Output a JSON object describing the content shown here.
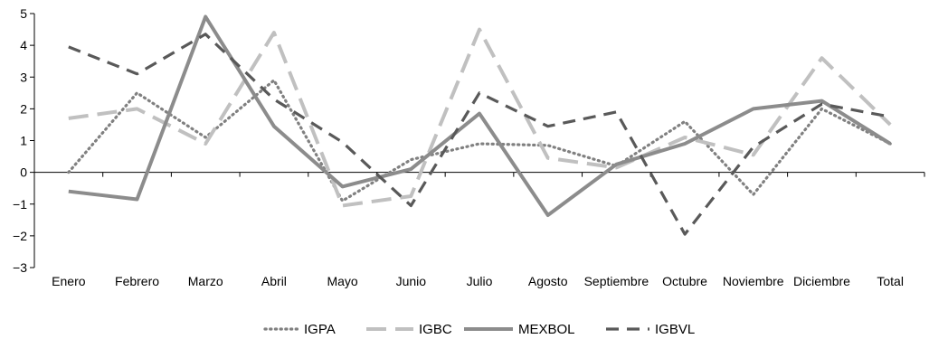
{
  "chart_data": {
    "type": "line",
    "categories": [
      "Enero",
      "Febrero",
      "Marzo",
      "Abril",
      "Mayo",
      "Junio",
      "Julio",
      "Agosto",
      "Septiembre",
      "Octubre",
      "Noviembre",
      "Diciembre",
      "Total"
    ],
    "ylim": [
      -3,
      5
    ],
    "yticks": [
      5,
      4,
      3,
      2,
      1,
      0,
      -1,
      -2,
      -3
    ],
    "ytick_labels": [
      "5",
      "4",
      "3",
      "2",
      "1",
      "0",
      "−1",
      "−2",
      "−3"
    ],
    "grid": false,
    "legend_position": "bottom",
    "series": [
      {
        "name": "IGPA",
        "style": "dotted",
        "color": "#808080",
        "values": [
          0.0,
          2.5,
          1.1,
          2.9,
          -0.9,
          0.4,
          0.9,
          0.85,
          0.2,
          1.6,
          -0.7,
          2.0,
          0.9
        ]
      },
      {
        "name": "IGBC",
        "style": "long-dash",
        "color": "#c0c0c0",
        "values": [
          1.7,
          2.0,
          0.9,
          4.4,
          -1.05,
          -0.75,
          4.5,
          0.45,
          0.15,
          1.1,
          0.55,
          3.6,
          1.5
        ]
      },
      {
        "name": "MEXBOL",
        "style": "solid",
        "color": "#8c8c8c",
        "values": [
          -0.6,
          -0.85,
          4.9,
          1.45,
          -0.45,
          0.1,
          1.85,
          -1.35,
          0.25,
          0.9,
          2.0,
          2.25,
          0.9
        ]
      },
      {
        "name": "IGBVL",
        "style": "dash",
        "color": "#595959",
        "values": [
          3.95,
          3.1,
          4.35,
          2.3,
          0.95,
          -1.05,
          2.5,
          1.45,
          1.9,
          -1.95,
          0.8,
          2.15,
          1.75
        ]
      }
    ]
  }
}
